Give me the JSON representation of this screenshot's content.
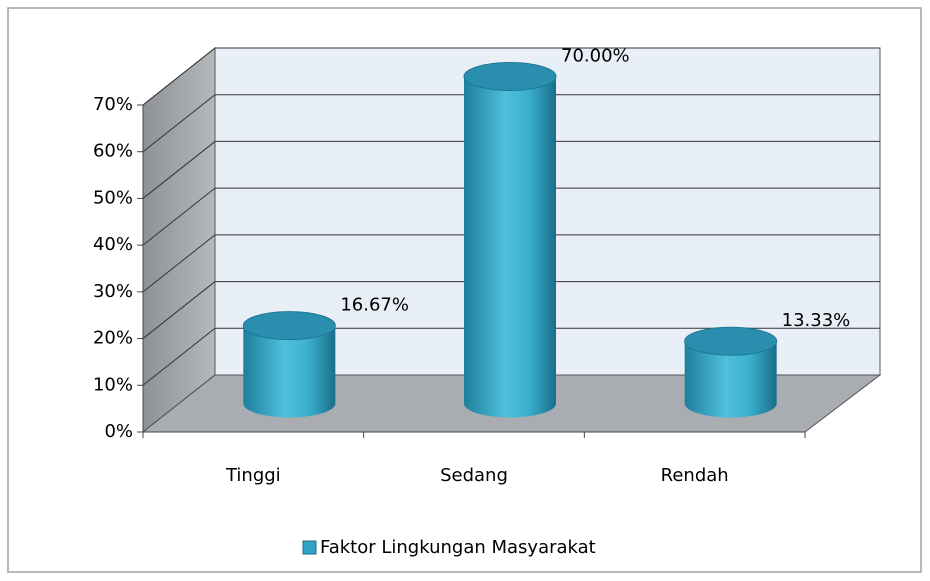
{
  "chart_data": {
    "type": "bar",
    "categories": [
      "Tinggi",
      "Sedang",
      "Rendah"
    ],
    "series": [
      {
        "name": "Faktor Lingkungan Masyarakat",
        "color": "#31a3c4",
        "values": [
          16.67,
          70,
          13.33
        ],
        "value_labels": [
          "16.67%",
          "70.00%",
          "13.33%"
        ]
      }
    ],
    "ylim": [
      0,
      70
    ],
    "yticks": [
      {
        "value": 0,
        "label": "0%"
      },
      {
        "value": 10,
        "label": "10%"
      },
      {
        "value": 20,
        "label": "20%"
      },
      {
        "value": 30,
        "label": "30%"
      },
      {
        "value": 40,
        "label": "40%"
      },
      {
        "value": 50,
        "label": "50%"
      },
      {
        "value": 60,
        "label": "60%"
      },
      {
        "value": 70,
        "label": "70%"
      }
    ],
    "grid": true,
    "legend": "bottom"
  }
}
